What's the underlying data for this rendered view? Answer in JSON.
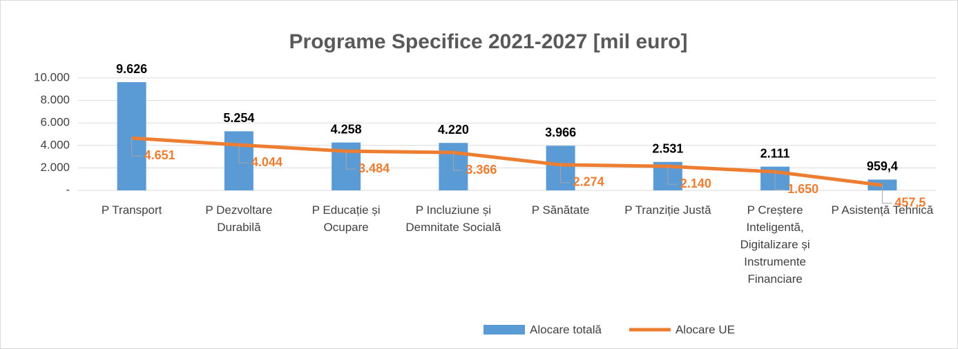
{
  "chart_data": {
    "type": "bar-line",
    "title": "Programe Specifice 2021-2027 [mil euro]",
    "categories": [
      "P Transport",
      "P Dezvoltare Durabilă",
      "P Educație și Ocupare",
      "P Incluziune și Demnitate Socială",
      "P Sănătate",
      "P Tranziție Justă",
      "P Creștere Inteligentă, Digitalizare și Instrumente Financiare",
      "P Asistență Tehnică"
    ],
    "series": [
      {
        "name": "Alocare totală",
        "color": "#5b9bd5",
        "kind": "bar",
        "values": [
          9626,
          5254,
          4258,
          4220,
          3966,
          2531,
          2111,
          959.4
        ],
        "value_labels": [
          "9.626",
          "5.254",
          "4.258",
          "4.220",
          "3.966",
          "2.531",
          "2.111",
          "959,4"
        ]
      },
      {
        "name": "Alocare UE",
        "color": "#ed7d31",
        "kind": "line",
        "values": [
          4651,
          4044,
          3484,
          3366,
          2274,
          2140,
          1650,
          457.5
        ],
        "value_labels": [
          "4.651",
          "4.044",
          "3.484",
          "3.366",
          "2.274",
          "2.140",
          "1.650",
          "457,5"
        ]
      }
    ],
    "ylim": [
      0,
      10000
    ],
    "yticks": [
      {
        "value": 0,
        "label": "-"
      },
      {
        "value": 2000,
        "label": "2.000"
      },
      {
        "value": 4000,
        "label": "4.000"
      },
      {
        "value": 6000,
        "label": "6.000"
      },
      {
        "value": 8000,
        "label": "8.000"
      },
      {
        "value": 10000,
        "label": "10.000"
      }
    ],
    "grid": true,
    "legend": "bottom"
  }
}
